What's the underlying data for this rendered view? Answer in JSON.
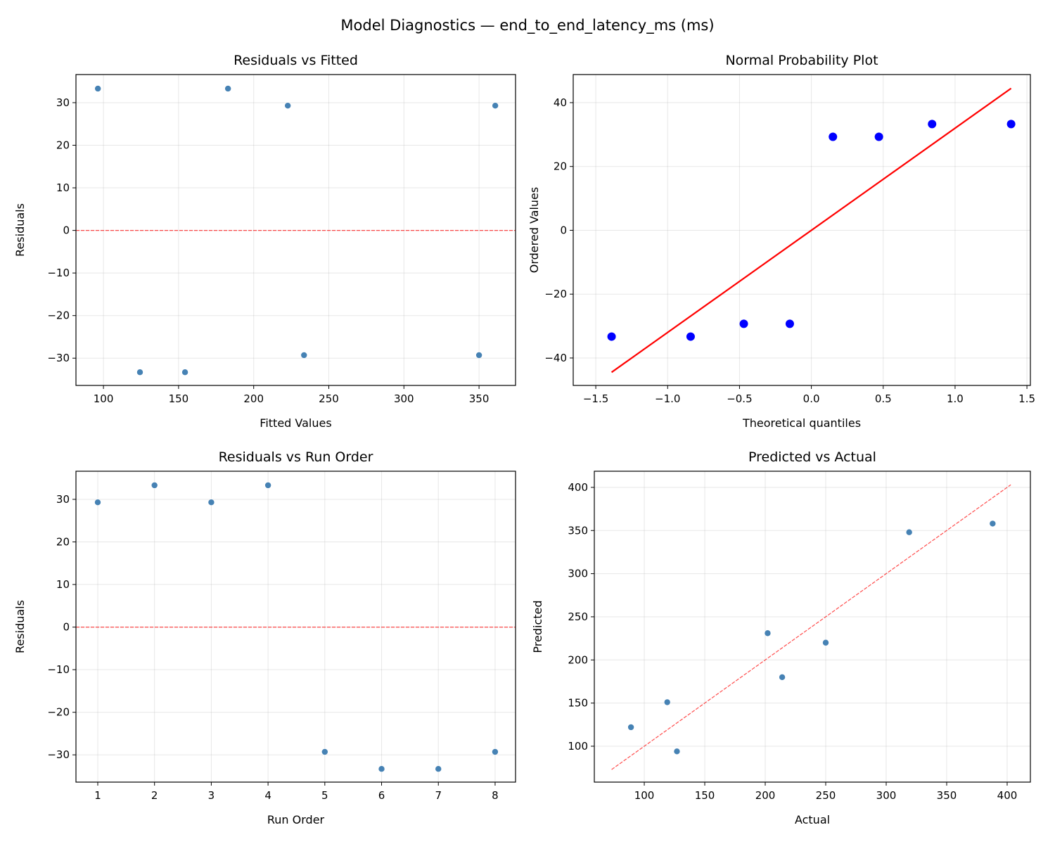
{
  "suptitle": "Model Diagnostics — end_to_end_latency_ms (ms)",
  "colors": {
    "point": "#4682b4",
    "qq_point": "#0000ff",
    "fit_line": "#ff0000",
    "ref_line": "#ff0000"
  },
  "chart_data": [
    {
      "type": "scatter",
      "title": "Residuals vs Fitted",
      "xlabel": "Fitted Values",
      "ylabel": "Residuals",
      "xlim": [
        81.7,
        374.3
      ],
      "ylim": [
        -36.4,
        36.6
      ],
      "xticks": [
        100,
        150,
        200,
        250,
        300,
        350
      ],
      "yticks": [
        -30,
        -20,
        -10,
        0,
        10,
        20,
        30
      ],
      "grid": true,
      "x": [
        96.3,
        124.3,
        154.3,
        182.9,
        222.7,
        233.5,
        350.0,
        360.8
      ],
      "y": [
        33.3,
        -33.3,
        -33.3,
        33.3,
        29.3,
        -29.3,
        -29.3,
        29.3
      ],
      "reference_line": {
        "kind": "horizontal",
        "y": 0,
        "style": "dashed"
      }
    },
    {
      "type": "scatter",
      "title": "Normal Probability Plot",
      "xlabel": "Theoretical quantiles",
      "ylabel": "Ordered Values",
      "xlim": [
        -1.657,
        1.524
      ],
      "ylim": [
        -48.6,
        48.8
      ],
      "xticks": [
        -1.5,
        -1.0,
        -0.5,
        0.0,
        0.5,
        1.0,
        1.5
      ],
      "yticks": [
        -40,
        -20,
        0,
        20,
        40
      ],
      "grid": true,
      "x": [
        -1.39,
        -0.84,
        -0.47,
        -0.15,
        0.15,
        0.47,
        0.84,
        1.39
      ],
      "y": [
        -33.3,
        -33.3,
        -29.3,
        -29.3,
        29.3,
        29.3,
        33.3,
        33.3
      ],
      "fit_line": {
        "slope": 32.0,
        "intercept": 0.0,
        "x_range": [
          -1.39,
          1.39
        ],
        "style": "solid"
      }
    },
    {
      "type": "scatter",
      "title": "Residuals vs Run Order",
      "xlabel": "Run Order",
      "ylabel": "Residuals",
      "xlim": [
        0.616,
        8.36
      ],
      "ylim": [
        -36.4,
        36.6
      ],
      "xticks": [
        1,
        2,
        3,
        4,
        5,
        6,
        7,
        8
      ],
      "yticks": [
        -30,
        -20,
        -10,
        0,
        10,
        20,
        30
      ],
      "grid": true,
      "x": [
        1,
        2,
        3,
        4,
        5,
        6,
        7,
        8
      ],
      "y": [
        29.3,
        33.3,
        29.3,
        33.3,
        -29.3,
        -33.3,
        -33.3,
        -29.3
      ],
      "reference_line": {
        "kind": "horizontal",
        "y": 0,
        "style": "dashed"
      }
    },
    {
      "type": "scatter",
      "title": "Predicted vs Actual",
      "xlabel": "Actual",
      "ylabel": "Predicted",
      "xlim": [
        58.7,
        419.2
      ],
      "ylim": [
        58.4,
        418.7
      ],
      "xticks": [
        100,
        150,
        200,
        250,
        300,
        350,
        400
      ],
      "yticks": [
        100,
        150,
        200,
        250,
        300,
        350,
        400
      ],
      "grid": true,
      "x": [
        89.0,
        119.0,
        127.0,
        202.0,
        214.0,
        250.0,
        319.0,
        388.0
      ],
      "y": [
        122.0,
        151.0,
        94.0,
        231.0,
        180.0,
        220.0,
        348.0,
        358.0
      ],
      "reference_line": {
        "kind": "identity",
        "range": [
          73,
          403
        ],
        "style": "dashed"
      }
    }
  ]
}
